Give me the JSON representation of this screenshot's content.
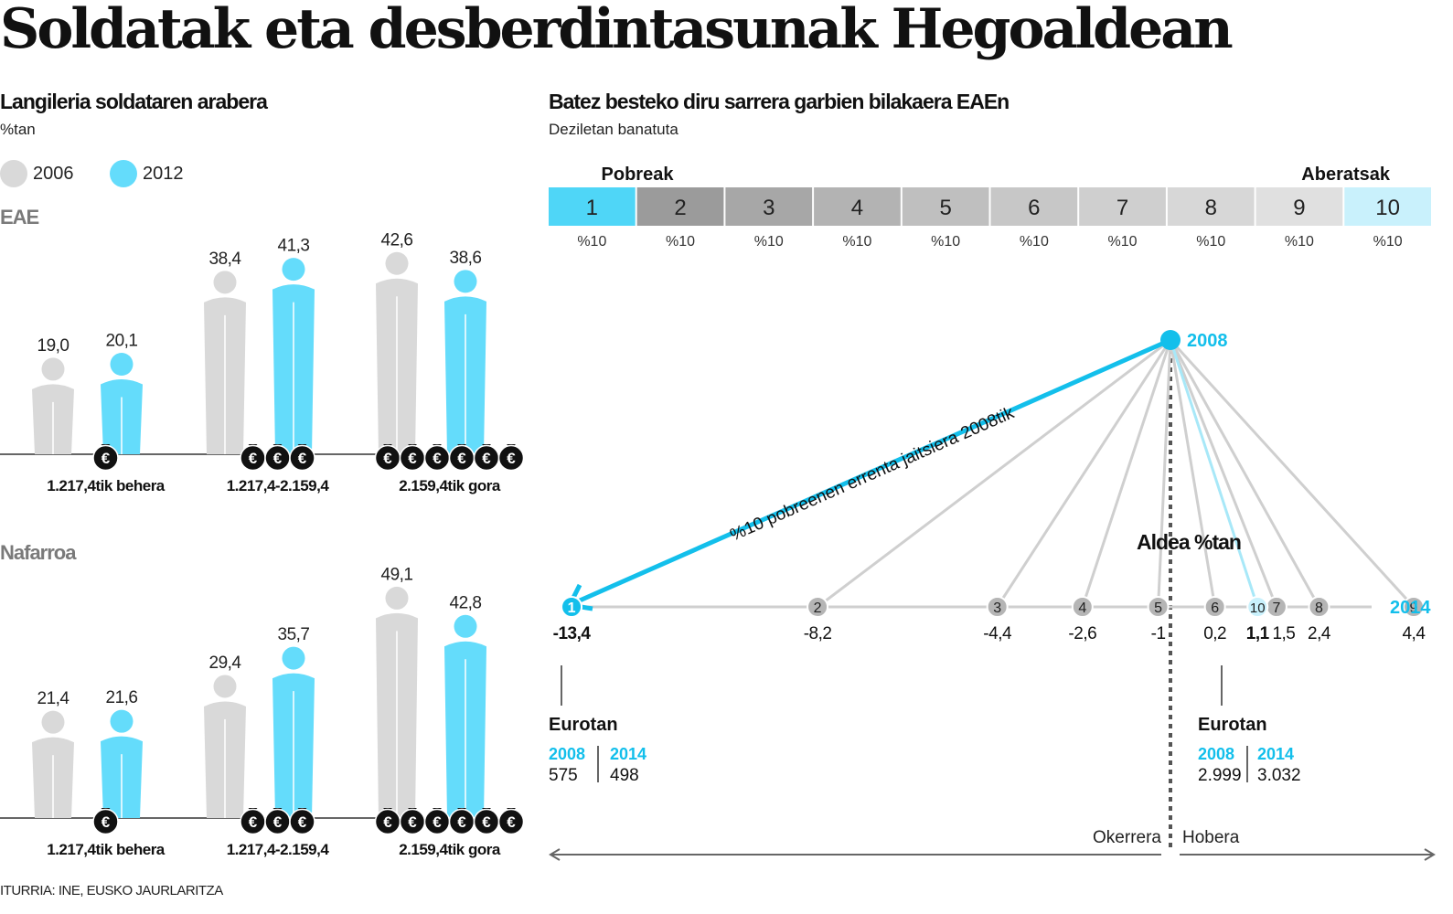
{
  "title": "Soldatak eta desberdintasunak Hegoaldean",
  "source": "ITURRIA: INE, EUSKO JAURLARITZA",
  "colors": {
    "y2006": "#d9d9d9",
    "y2012": "#64dcfb",
    "accent": "#13bfeb",
    "line": "#cfcfcf",
    "dark": "#111111"
  },
  "left": {
    "title": "Langileria soldataren arabera",
    "subtitle": "%tan",
    "legend": [
      {
        "label": "2006",
        "color": "#d9d9d9"
      },
      {
        "label": "2012",
        "color": "#64dcfb"
      }
    ]
  },
  "right": {
    "title": "Batez besteko diru sarrera garbien bilakaera EAEn",
    "subtitle": "Deziletan banatuta",
    "poor_label": "Pobreak",
    "rich_label": "Aberatsak",
    "decile_share": "%10",
    "gap_label": "Aldea %tan",
    "arrow_label": "%10 pobreenen errenta jaitsiera 2008tik",
    "year_start": "2008",
    "year_end": "2014",
    "worse_label": "Okerrera",
    "better_label": "Hobera",
    "eurotan_left": {
      "label": "Eurotan",
      "y1": "2008",
      "v1": "575",
      "y2": "2014",
      "v2": "498"
    },
    "eurotan_right": {
      "label": "Eurotan",
      "y1": "2008",
      "v1": "2.999",
      "y2": "2014",
      "v2": "3.032"
    }
  },
  "chart_data": [
    {
      "type": "bar",
      "region": "EAE",
      "unit": "%tan",
      "categories": [
        "1.217,4tik behera",
        "1.217,4-2.159,4",
        "2.159,4tik gora"
      ],
      "euro_icons": [
        1,
        3,
        6
      ],
      "series": [
        {
          "name": "2006",
          "values": [
            19.0,
            38.4,
            42.6
          ],
          "labels": [
            "19,0",
            "38,4",
            "42,6"
          ]
        },
        {
          "name": "2012",
          "values": [
            20.1,
            41.3,
            38.6
          ],
          "labels": [
            "20,1",
            "41,3",
            "38,6"
          ]
        }
      ]
    },
    {
      "type": "bar",
      "region": "Nafarroa",
      "unit": "%tan",
      "categories": [
        "1.217,4tik behera",
        "1.217,4-2.159,4",
        "2.159,4tik gora"
      ],
      "euro_icons": [
        1,
        3,
        6
      ],
      "series": [
        {
          "name": "2006",
          "values": [
            21.4,
            29.4,
            49.1
          ],
          "labels": [
            "21,4",
            "29,4",
            "49,1"
          ]
        },
        {
          "name": "2012",
          "values": [
            21.6,
            35.7,
            42.8
          ],
          "labels": [
            "21,6",
            "35,7",
            "42,8"
          ]
        }
      ]
    },
    {
      "type": "scatter",
      "title": "Batez besteko diru sarrera garbien bilakaera EAEn",
      "subtitle": "Deziletan banatuta",
      "xlabel": "Aldea %tan",
      "deciles": [
        1,
        2,
        3,
        4,
        5,
        6,
        7,
        8,
        9,
        10
      ],
      "change_pct": [
        -13.4,
        -8.2,
        -4.4,
        -2.6,
        -1.0,
        0.2,
        1.5,
        2.4,
        4.4,
        1.1
      ],
      "change_labels": [
        "-13,4",
        "-8,2",
        "-4,4",
        "-2,6",
        "-1",
        "0,2",
        "1,5",
        "2,4",
        "4,4",
        "1,1"
      ],
      "highlight_deciles": [
        1,
        10
      ],
      "xlim": [
        -14,
        5
      ]
    }
  ]
}
